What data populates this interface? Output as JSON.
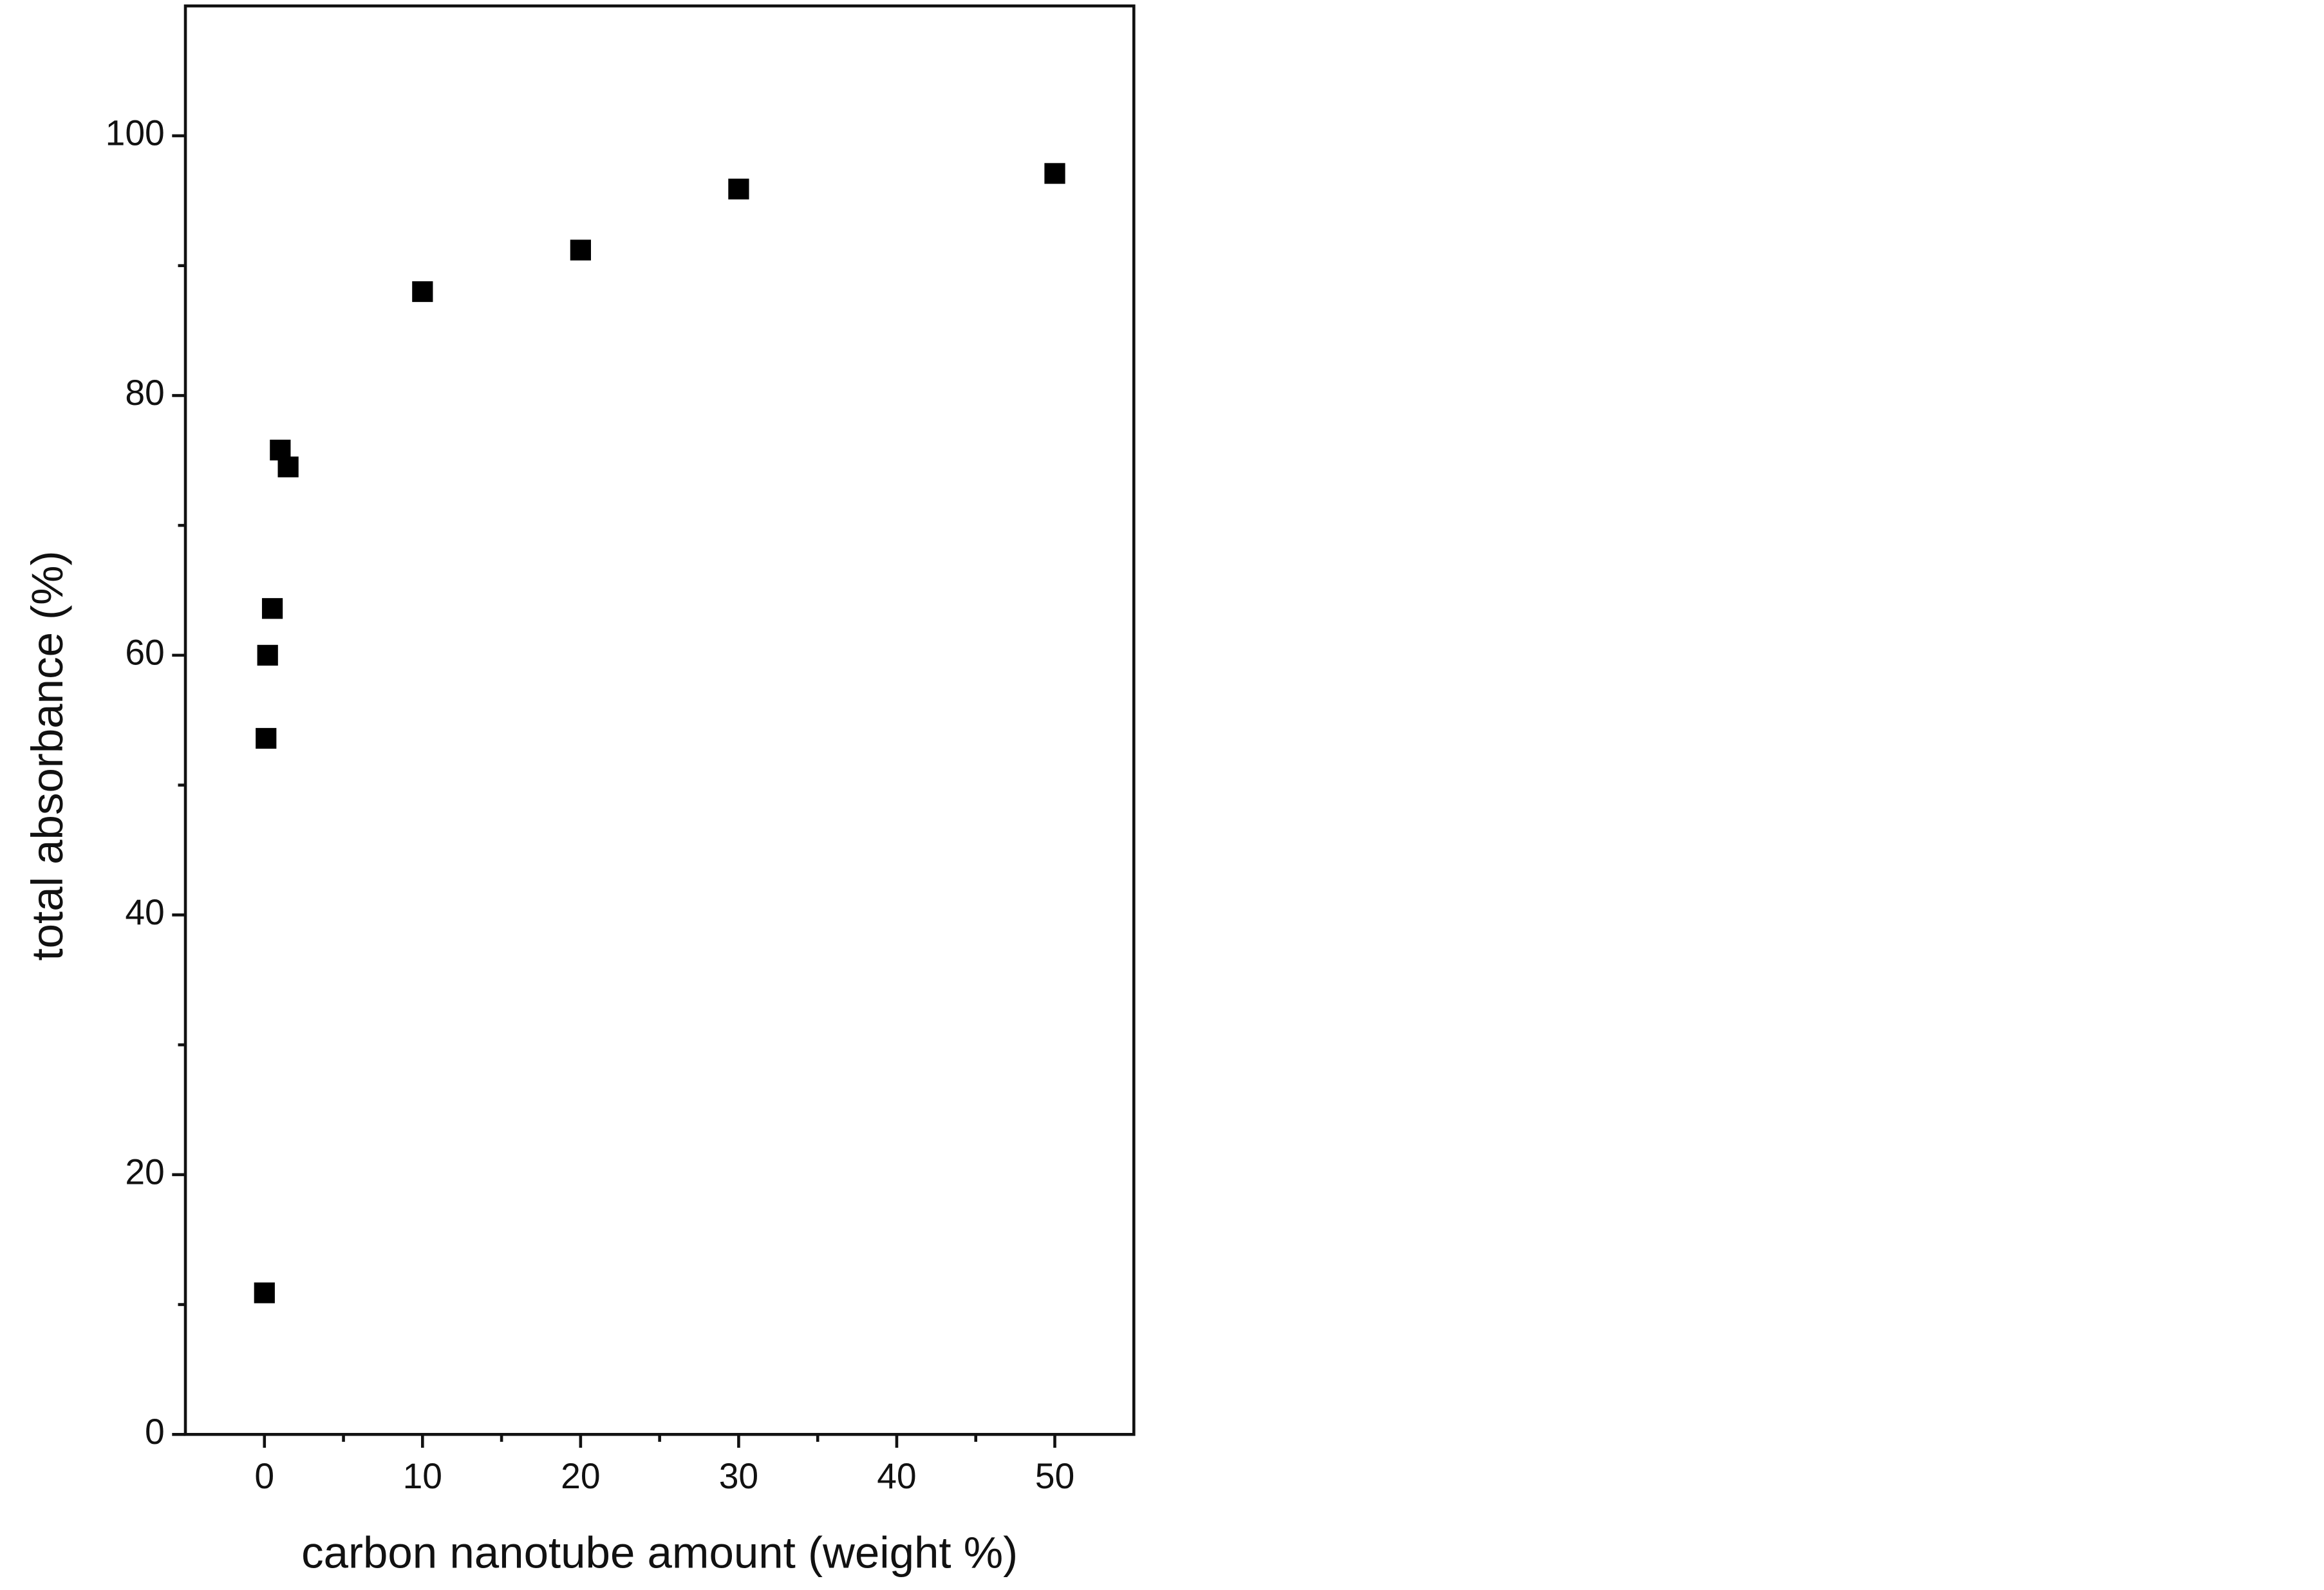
{
  "chart_data": {
    "type": "scatter",
    "xlabel": "carbon nanotube amount (weight %)",
    "ylabel": "total absorbance (%)",
    "series": [
      {
        "color": "#000000",
        "x": [
          0,
          0.1,
          0.2,
          0.5,
          1,
          1.5,
          10,
          20,
          30,
          50
        ],
        "values": [
          10.9,
          53.6,
          60,
          63.6,
          75.8,
          74.5,
          88,
          91.2,
          95.9,
          97.1
        ]
      }
    ],
    "xlim": [
      -5,
      55
    ],
    "ylim": [
      0,
      110
    ],
    "xticks": [
      0,
      10,
      20,
      30,
      40,
      50
    ],
    "yticks": [
      0,
      20,
      40,
      60,
      80,
      100
    ],
    "grid": false
  }
}
